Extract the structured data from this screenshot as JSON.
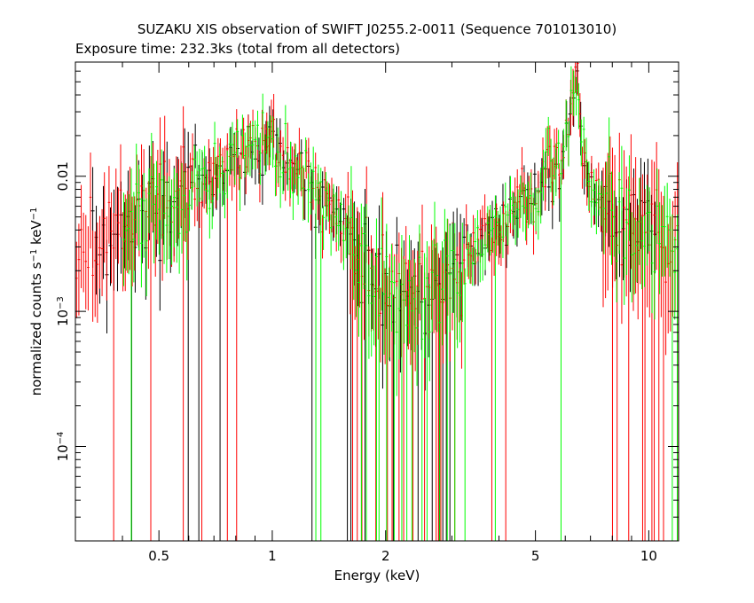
{
  "chart_data": {
    "type": "scatter",
    "title": "SUZAKU XIS observation of SWIFT J0255.2-0011 (Sequence 701013010)",
    "subtitle": "Exposure time: 232.3ks (total from all detectors)",
    "xlabel": "Energy (keV)",
    "ylabel": "normalized counts s^-1 keV^-1",
    "x_scale": "log",
    "y_scale": "log",
    "xlim": [
      0.3,
      12.0
    ],
    "ylim": [
      2e-05,
      0.07
    ],
    "x_ticks": [
      {
        "value": 0.5,
        "label": "0.5"
      },
      {
        "value": 1,
        "label": "1"
      },
      {
        "value": 2,
        "label": "2"
      },
      {
        "value": 5,
        "label": "5"
      },
      {
        "value": 10,
        "label": "10"
      }
    ],
    "y_ticks": [
      {
        "value": 0.0001,
        "base": "10",
        "exp": "-4",
        "label": "10^-4"
      },
      {
        "value": 0.001,
        "base": "10",
        "exp": "-3",
        "label": "10^-3"
      },
      {
        "value": 0.01,
        "base": "",
        "exp": "",
        "label": "0.01"
      }
    ],
    "series_colors": [
      "#000000",
      "#ff0000",
      "#00ff00"
    ],
    "spectrum_profile": [
      [
        0.3,
        0.0028
      ],
      [
        0.4,
        0.004
      ],
      [
        0.5,
        0.0065
      ],
      [
        0.6,
        0.0085
      ],
      [
        0.7,
        0.0105
      ],
      [
        0.8,
        0.014
      ],
      [
        0.9,
        0.018
      ],
      [
        1.0,
        0.017
      ],
      [
        1.1,
        0.013
      ],
      [
        1.3,
        0.0085
      ],
      [
        1.5,
        0.0055
      ],
      [
        1.7,
        0.003
      ],
      [
        2.0,
        0.0014
      ],
      [
        2.3,
        0.001
      ],
      [
        2.6,
        0.0012
      ],
      [
        3.0,
        0.0018
      ],
      [
        3.5,
        0.0028
      ],
      [
        4.0,
        0.0045
      ],
      [
        5.0,
        0.008
      ],
      [
        5.6,
        0.012
      ],
      [
        6.0,
        0.016
      ],
      [
        6.2,
        0.03
      ],
      [
        6.4,
        0.065
      ],
      [
        6.6,
        0.025
      ],
      [
        6.9,
        0.01
      ],
      [
        7.3,
        0.007
      ],
      [
        8.0,
        0.0055
      ],
      [
        9.0,
        0.0045
      ],
      [
        10.0,
        0.004
      ],
      [
        12.0,
        0.004
      ]
    ],
    "series": [
      {
        "detector_index": 0,
        "color": "#000000",
        "bins": 160
      },
      {
        "detector_index": 1,
        "color": "#ff0000",
        "bins": 260
      },
      {
        "detector_index": 2,
        "color": "#00ff00",
        "bins": 220
      }
    ],
    "grid": false,
    "legend": "none"
  }
}
